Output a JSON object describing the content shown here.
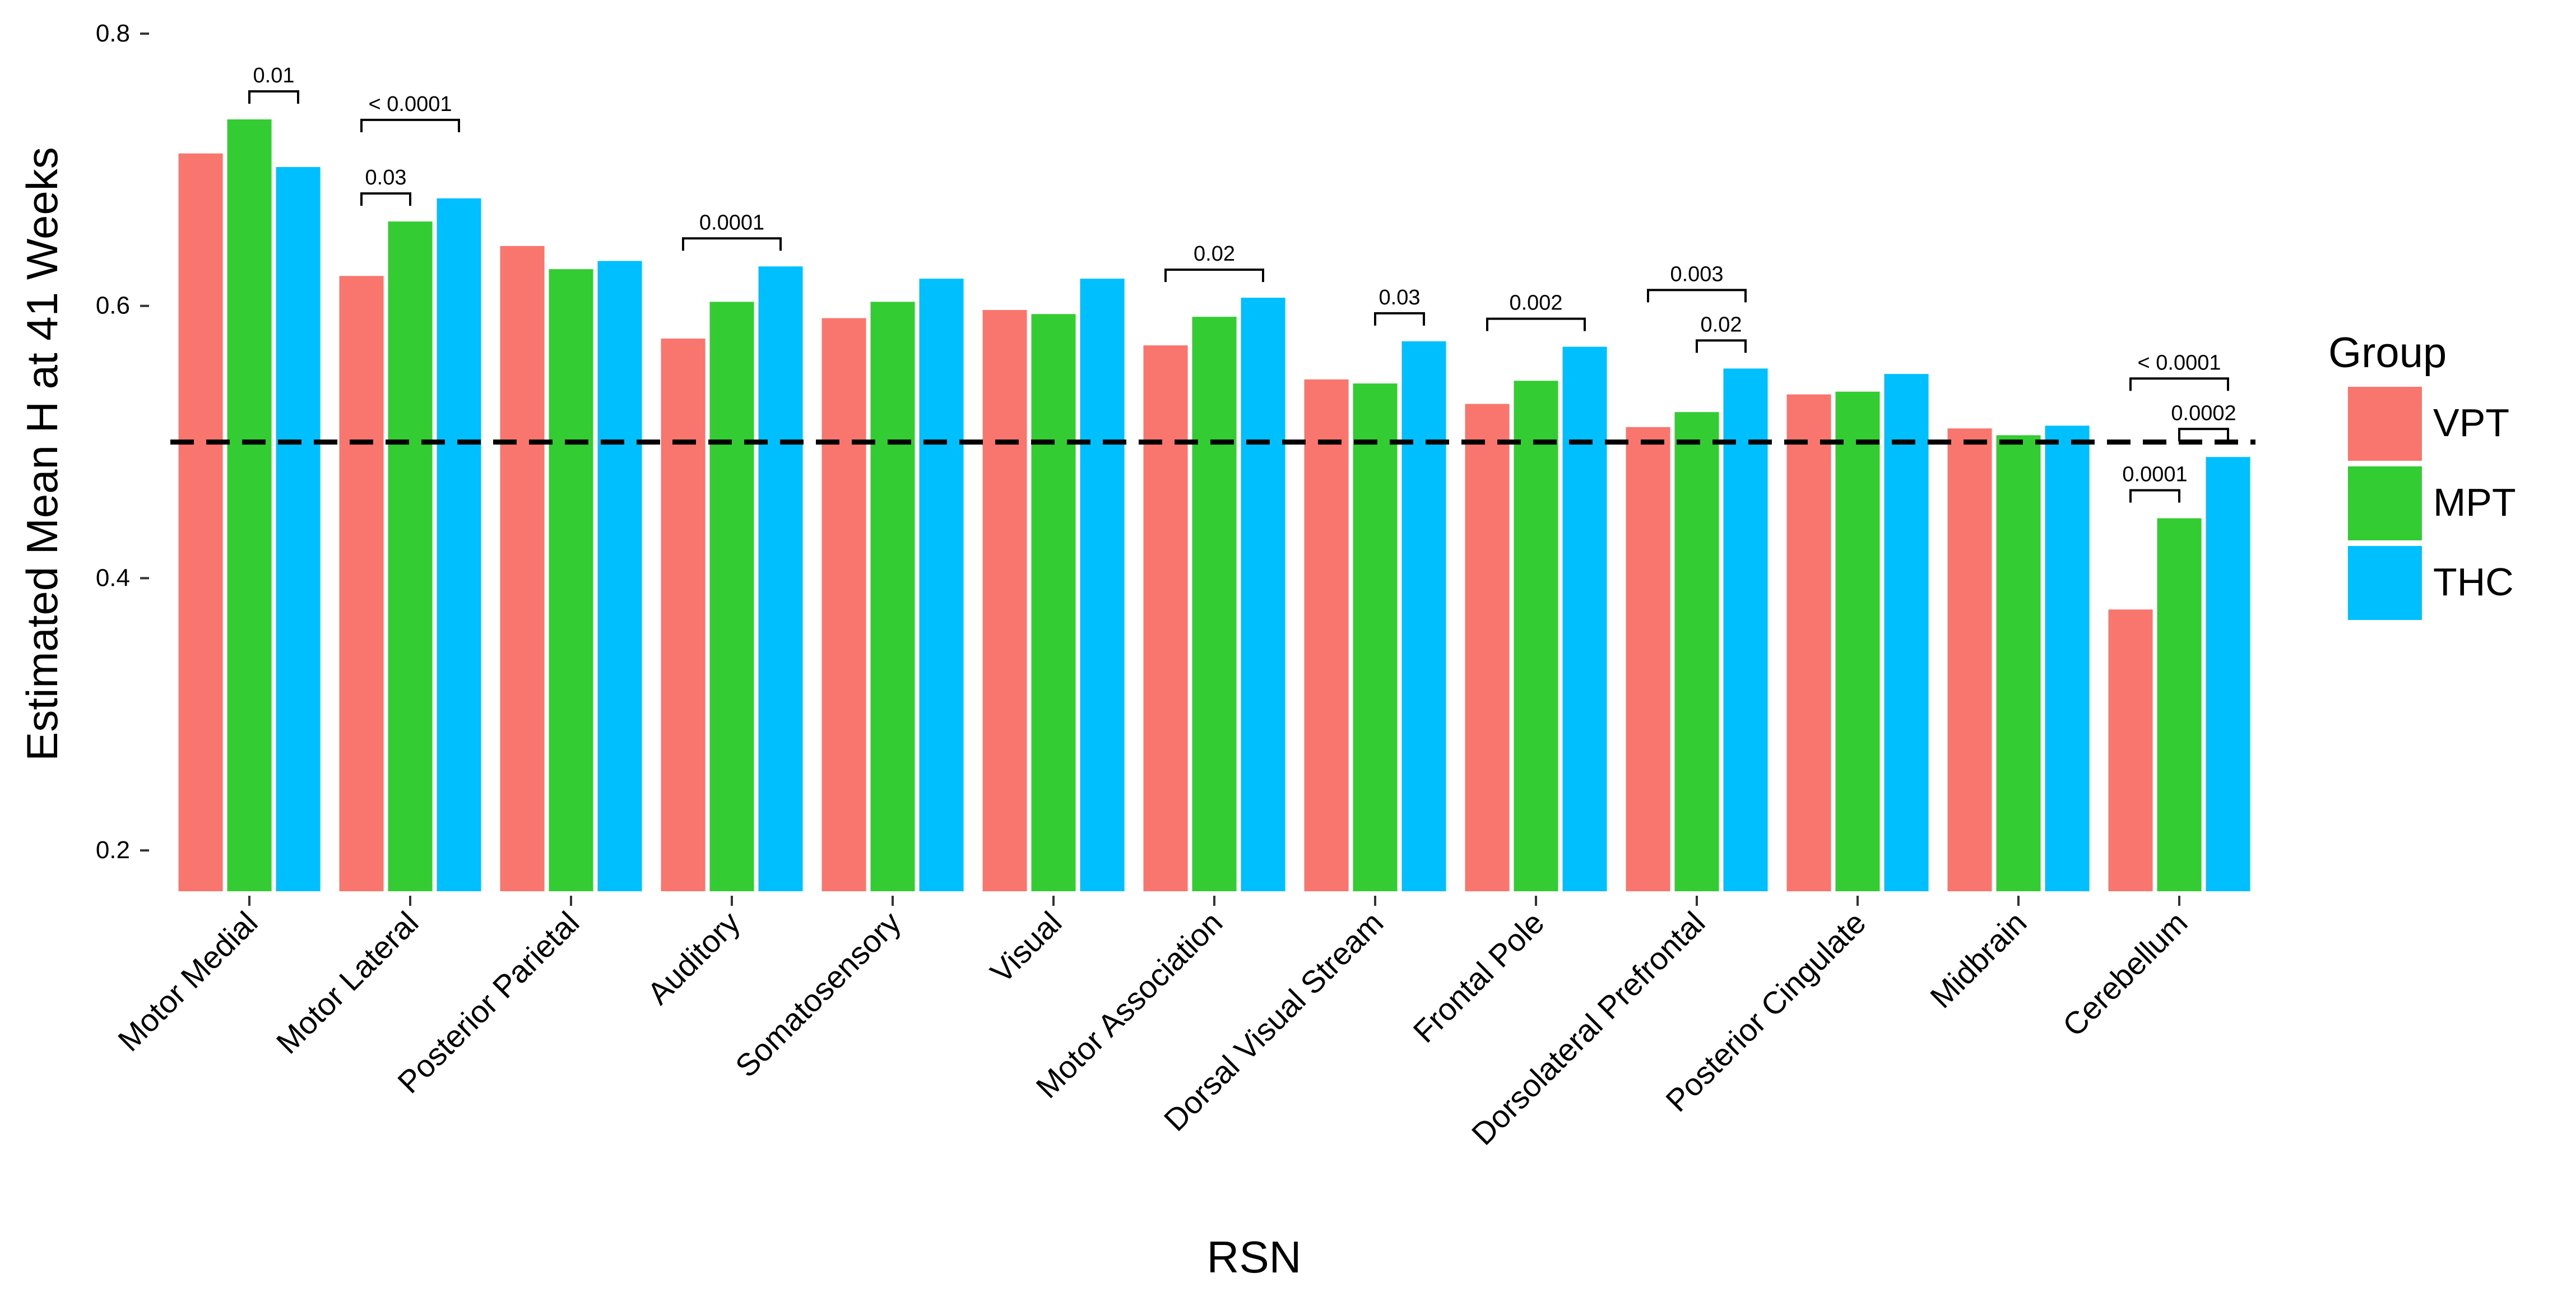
{
  "chart_data": {
    "type": "bar",
    "title": "",
    "xlabel": "RSN",
    "ylabel": "Estimated Mean H at 41 Weeks",
    "ylim": [
      0.17,
      0.8
    ],
    "yticks": [
      0.2,
      0.4,
      0.6,
      0.8
    ],
    "ytick_labels": [
      "0.2",
      "0.4",
      "0.6",
      "0.8"
    ],
    "reference_line": 0.5,
    "grid": false,
    "legend": {
      "title": "Group",
      "position": "right"
    },
    "categories": [
      "Motor Medial",
      "Motor Lateral",
      "Posterior Parietal",
      "Auditory",
      "Somatosensory",
      "Visual",
      "Motor Association",
      "Dorsal Visual Stream",
      "Frontal Pole",
      "Dorsolateral Prefrontal",
      "Posterior Cingulate",
      "Midbrain",
      "Cerebellum"
    ],
    "series": [
      {
        "name": "VPT",
        "color": "#F8766D",
        "values": [
          0.712,
          0.622,
          0.644,
          0.576,
          0.591,
          0.597,
          0.571,
          0.546,
          0.528,
          0.511,
          0.535,
          0.51,
          0.377
        ]
      },
      {
        "name": "MPT",
        "color": "#33CC33",
        "values": [
          0.737,
          0.662,
          0.627,
          0.603,
          0.603,
          0.594,
          0.592,
          0.543,
          0.545,
          0.522,
          0.537,
          0.505,
          0.444
        ]
      },
      {
        "name": "THC",
        "color": "#00BFFF",
        "values": [
          0.702,
          0.679,
          0.633,
          0.629,
          0.62,
          0.62,
          0.606,
          0.574,
          0.57,
          0.554,
          0.55,
          0.512,
          0.489
        ]
      }
    ],
    "annotations": [
      {
        "category": 0,
        "from": 1,
        "to": 2,
        "text": "0.01",
        "level": 0
      },
      {
        "category": 1,
        "from": 0,
        "to": 1,
        "text": "0.03",
        "level": 0
      },
      {
        "category": 1,
        "from": 0,
        "to": 2,
        "text": "< 0.0001",
        "level": 1
      },
      {
        "category": 3,
        "from": 0,
        "to": 2,
        "text": "0.0001",
        "level": 0
      },
      {
        "category": 6,
        "from": 0,
        "to": 2,
        "text": "0.02",
        "level": 0
      },
      {
        "category": 7,
        "from": 1,
        "to": 2,
        "text": "0.03",
        "level": 0
      },
      {
        "category": 8,
        "from": 0,
        "to": 2,
        "text": "0.002",
        "level": 0
      },
      {
        "category": 9,
        "from": 1,
        "to": 2,
        "text": "0.02",
        "level": 0
      },
      {
        "category": 9,
        "from": 0,
        "to": 2,
        "text": "0.003",
        "level": 1
      },
      {
        "category": 12,
        "from": 0,
        "to": 1,
        "text": "0.0001",
        "level": 0
      },
      {
        "category": 12,
        "from": 1,
        "to": 2,
        "text": "0.0002",
        "level": 0
      },
      {
        "category": 12,
        "from": 0,
        "to": 2,
        "text": "< 0.0001",
        "level": 1
      }
    ]
  }
}
